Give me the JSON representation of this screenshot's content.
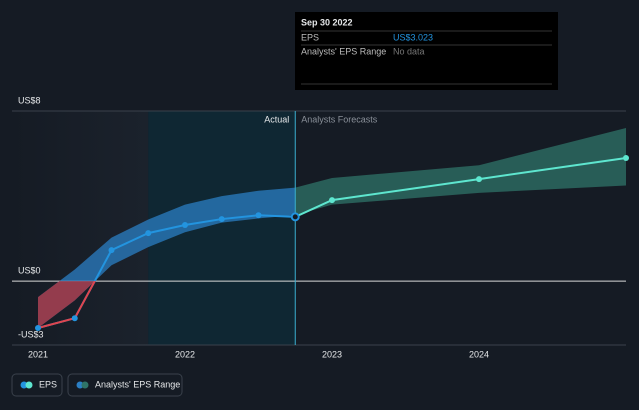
{
  "chart_data": {
    "type": "line",
    "x": [
      2021,
      2021.25,
      2021.5,
      2021.75,
      2022,
      2022.25,
      2022.5,
      2022.75,
      2023,
      2024,
      2025
    ],
    "xlim": [
      2021,
      2025
    ],
    "xticks": [
      2021,
      2022,
      2023,
      2024
    ],
    "ylim": [
      -3,
      8
    ],
    "yticks": [
      {
        "value": -3,
        "label": "-US$3"
      },
      {
        "value": 0,
        "label": "US$0"
      },
      {
        "value": 8,
        "label": "US$8"
      }
    ],
    "series": [
      {
        "name": "EPS",
        "color": "#2394df",
        "forecast_color": "#5ee6cf",
        "negative_color": "#e0454e",
        "values": [
          -2.2,
          -1.74,
          1.46,
          2.26,
          2.64,
          2.92,
          3.1,
          3.023,
          3.81,
          4.8,
          5.79
        ]
      },
      {
        "name": "Analysts' EPS Range",
        "color": "#2b7fc4",
        "forecast_color": "#2f7468",
        "negative_color": "#b0323a",
        "low": [
          -2.2,
          -0.9,
          0.75,
          1.6,
          2.3,
          2.75,
          2.95,
          3.1,
          3.6,
          4.15,
          4.5
        ],
        "high": [
          -0.75,
          0.55,
          2.05,
          2.9,
          3.6,
          4.0,
          4.25,
          4.4,
          4.85,
          5.45,
          7.2
        ]
      }
    ],
    "actual_label": "Actual",
    "forecast_label": "Analysts Forecasts",
    "tooltip": {
      "date": "Sep 30 2022",
      "rows": [
        {
          "label": "EPS",
          "value": "US$3.023"
        },
        {
          "label": "Analysts' EPS Range",
          "value": "No data"
        }
      ]
    }
  }
}
